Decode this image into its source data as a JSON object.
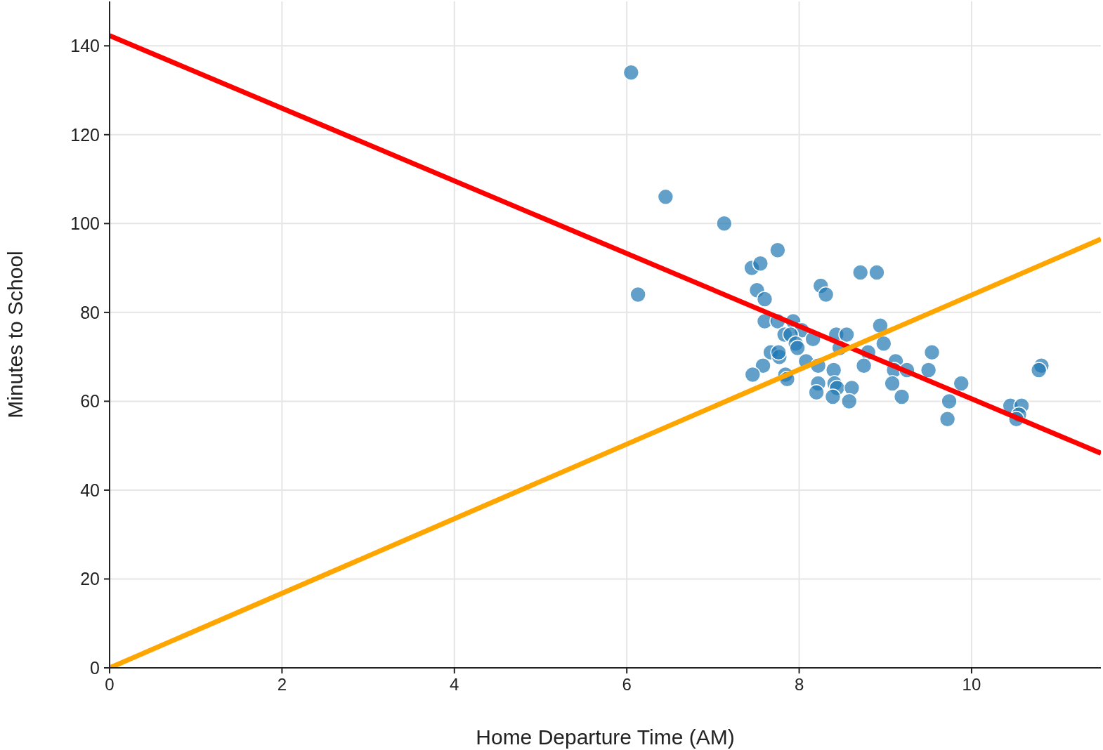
{
  "chart_data": {
    "type": "scatter",
    "xlabel": "Home Departure Time (AM)",
    "ylabel": "Minutes to School",
    "xlim": [
      0,
      11.5
    ],
    "ylim": [
      0,
      150
    ],
    "xticks": [
      0,
      2,
      4,
      6,
      8,
      10
    ],
    "yticks": [
      0,
      20,
      40,
      60,
      80,
      100,
      120,
      140
    ],
    "grid": true,
    "marker": "circle",
    "series": [
      {
        "color": "#1f77b4",
        "x": [
          6.05,
          6.45,
          7.13,
          6.13,
          7.75,
          7.45,
          7.55,
          7.51,
          7.6,
          7.6,
          7.75,
          7.93,
          8.03,
          7.83,
          7.9,
          7.96,
          7.98,
          8.16,
          7.67,
          7.77,
          7.76,
          7.58,
          7.46,
          7.84,
          7.86,
          8.08,
          8.22,
          8.25,
          8.31,
          8.43,
          8.55,
          8.47,
          8.4,
          8.22,
          8.2,
          8.41,
          8.44,
          8.39,
          8.61,
          8.58,
          8.71,
          8.9,
          8.94,
          8.98,
          8.8,
          8.75,
          9.12,
          9.1,
          9.25,
          9.08,
          9.19,
          9.54,
          9.5,
          9.88,
          9.74,
          9.72,
          10.45,
          10.58,
          10.55,
          10.52,
          10.81,
          10.78
        ],
        "values": [
          134,
          106,
          100,
          84,
          94,
          90,
          91,
          85,
          83,
          78,
          78,
          78,
          76,
          75,
          75,
          73,
          72,
          74,
          71,
          70,
          71,
          68,
          66,
          66,
          65,
          69,
          68,
          86,
          84,
          75,
          75,
          72,
          67,
          64,
          62,
          64,
          63,
          61,
          63,
          60,
          89,
          89,
          77,
          73,
          71,
          68,
          69,
          67,
          67,
          64,
          61,
          71,
          67,
          64,
          60,
          56,
          59,
          59,
          57,
          56,
          68,
          67
        ]
      },
      {
        "type": "line",
        "color": "#ff0000",
        "x": [
          0,
          11.5
        ],
        "values": [
          142.3,
          48.3
        ],
        "marker": "none"
      },
      {
        "type": "line",
        "color": "#ffa500",
        "x": [
          0,
          11.5
        ],
        "values": [
          0,
          96.5
        ],
        "marker": "none"
      }
    ]
  }
}
